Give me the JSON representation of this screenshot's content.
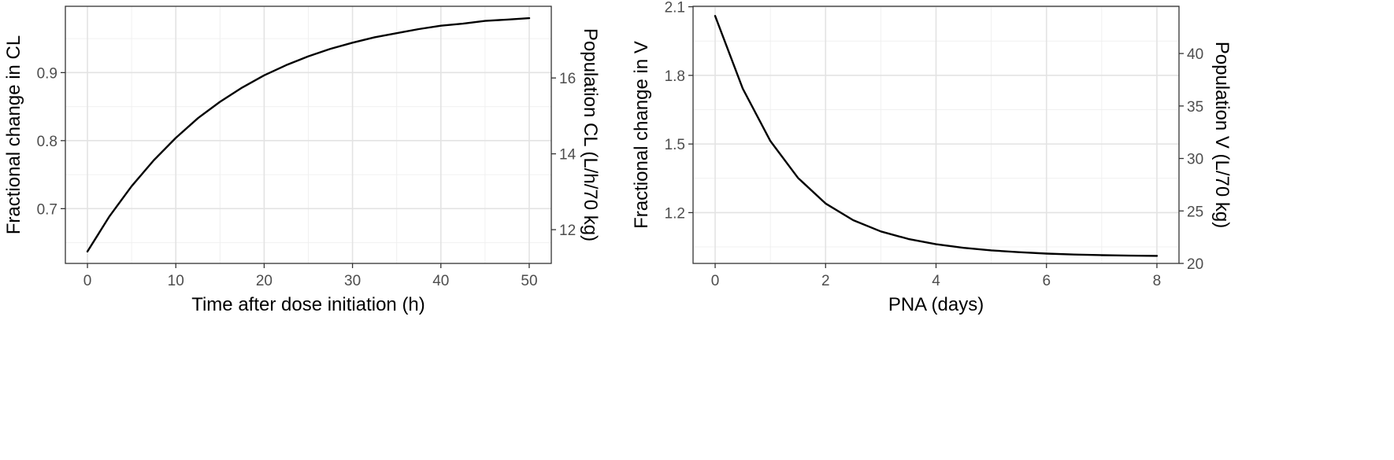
{
  "chart_data": [
    {
      "type": "line",
      "title": "",
      "xlabel": "Time after dose initiation (h)",
      "ylabel": "Fractional change in CL",
      "y2label": "Population CL (L/h/70 kg)",
      "xlim": [
        -2.5,
        52.5
      ],
      "ylim": [
        0.6195,
        0.9975
      ],
      "y2lim": [
        11.11,
        17.89
      ],
      "xticks": [
        0,
        10,
        20,
        30,
        40,
        50
      ],
      "xtick_labels": [
        "0",
        "10",
        "20",
        "30",
        "40",
        "50"
      ],
      "yticks": [
        0.7,
        0.8,
        0.9
      ],
      "ytick_labels": [
        "0.7",
        "0.8",
        "0.9"
      ],
      "y2ticks": [
        12,
        14,
        16
      ],
      "y2tick_labels": [
        "12",
        "14",
        "16"
      ],
      "grid": true,
      "series": [
        {
          "x": [
            0,
            2.5,
            5,
            7.5,
            10,
            12.5,
            15,
            17.5,
            20,
            22.5,
            25,
            27.5,
            30,
            32.5,
            35,
            37.5,
            40,
            42.5,
            45,
            47.5,
            50
          ],
          "y": [
            0.637,
            0.689,
            0.733,
            0.771,
            0.804,
            0.833,
            0.857,
            0.878,
            0.896,
            0.911,
            0.924,
            0.935,
            0.944,
            0.952,
            0.958,
            0.964,
            0.969,
            0.972,
            0.976,
            0.978,
            0.98
          ]
        }
      ]
    },
    {
      "type": "line",
      "title": "",
      "xlabel": "PNA (days)",
      "ylabel": "Fractional change in V",
      "y2label": "Population V (L/70 kg)",
      "xlim": [
        -0.4,
        8.4
      ],
      "ylim": [
        0.978,
        2.102
      ],
      "y2lim": [
        20,
        44.5
      ],
      "xticks": [
        0,
        2,
        4,
        6,
        8
      ],
      "xtick_labels": [
        "0",
        "2",
        "4",
        "6",
        "8"
      ],
      "yticks": [
        1.2,
        1.5,
        1.8,
        2.1
      ],
      "ytick_labels": [
        "1.2",
        "1.5",
        "1.8",
        "2.1"
      ],
      "y2ticks": [
        20,
        25,
        30,
        35,
        40
      ],
      "y2tick_labels": [
        "20",
        "25",
        "30",
        "35",
        "40"
      ],
      "grid": true,
      "series": [
        {
          "x": [
            0,
            0.5,
            1,
            1.5,
            2,
            2.5,
            3,
            3.5,
            4,
            4.5,
            5,
            5.5,
            6,
            6.5,
            7,
            7.5,
            8
          ],
          "y": [
            2.06,
            1.742,
            1.513,
            1.352,
            1.24,
            1.167,
            1.118,
            1.085,
            1.062,
            1.046,
            1.035,
            1.027,
            1.021,
            1.017,
            1.014,
            1.012,
            1.011
          ]
        }
      ]
    }
  ]
}
